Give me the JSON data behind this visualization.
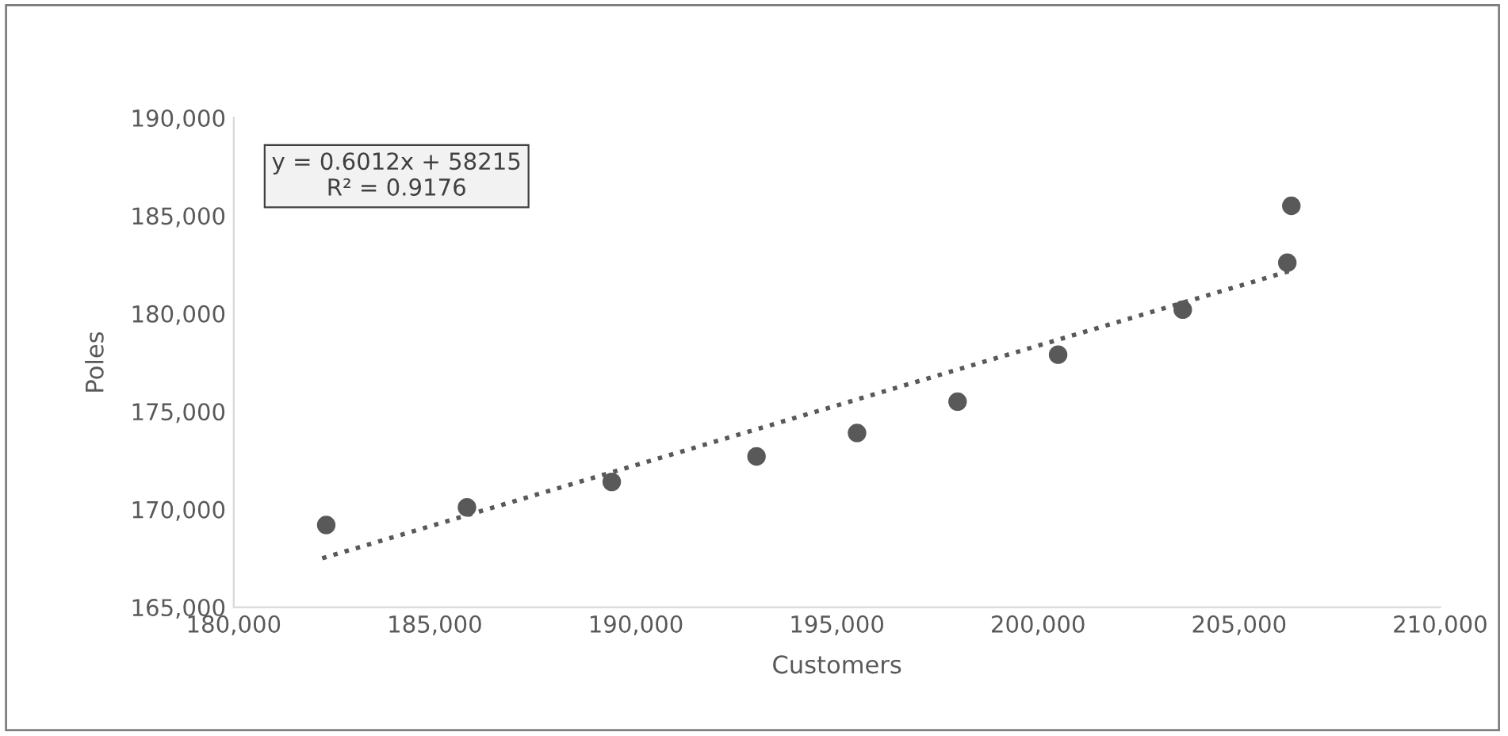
{
  "chart_data": {
    "type": "scatter",
    "xlabel": "Customers",
    "ylabel": "Poles",
    "xlim": [
      180000,
      210000
    ],
    "xticks": [
      {
        "value": 180000,
        "label": "180,000"
      },
      {
        "value": 185000,
        "label": "185,000"
      },
      {
        "value": 190000,
        "label": "190,000"
      },
      {
        "value": 195000,
        "label": "195,000"
      },
      {
        "value": 200000,
        "label": "200,000"
      },
      {
        "value": 205000,
        "label": "205,000"
      },
      {
        "value": 210000,
        "label": "210,000"
      }
    ],
    "ylim": [
      165000,
      190000
    ],
    "yticks": [
      {
        "value": 165000,
        "label": "165,000"
      },
      {
        "value": 170000,
        "label": "170,000"
      },
      {
        "value": 175000,
        "label": "175,000"
      },
      {
        "value": 180000,
        "label": "180,000"
      },
      {
        "value": 185000,
        "label": "185,000"
      },
      {
        "value": 190000,
        "label": "190,000"
      }
    ],
    "grid": false,
    "legend": false,
    "series": [
      {
        "color": "#595959",
        "marker": "circle",
        "x": [
          182300,
          185800,
          189400,
          193000,
          195500,
          198000,
          200500,
          203600,
          206200,
          206300
        ],
        "values": [
          169200,
          170100,
          171400,
          172700,
          173900,
          175500,
          177900,
          180200,
          182600,
          185500
        ]
      },
      {
        "type": "line",
        "color": "#595959",
        "line_style": "dotted",
        "marker": "none",
        "x": [
          182200,
          206300
        ],
        "values": [
          167500,
          182200
        ]
      }
    ],
    "annotations": [
      "y = 0.6012x + 58215\nR² = 0.9176"
    ]
  }
}
